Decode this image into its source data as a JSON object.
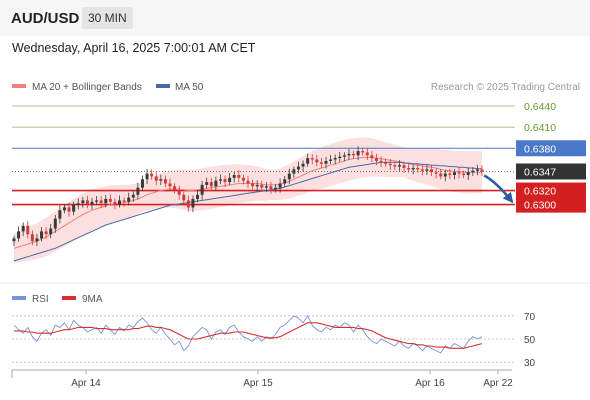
{
  "header": {
    "symbol": "AUD/USD",
    "timeframe": "30 MIN",
    "datetime": "Wednesday, April 16, 2025 7:00:01 AM CET"
  },
  "colors": {
    "up_candle": "#3a3a3a",
    "down_candle": "#d33a3a",
    "ma20": "#f08080",
    "bollinger_fill": "#fbd5d5",
    "ma50": "#4a68a8",
    "resistance_green": "#a8c880",
    "resistance_blue": "#4a78c8",
    "support_red": "#d42020",
    "current_price_box": "#333333",
    "rsi": "#7a93d8",
    "rsi_ma": "#d63030",
    "forecast_arrow": "#2f5aa0"
  },
  "chart_data": [
    {
      "type": "candlestick",
      "legend": [
        {
          "name": "MA 20 + Bollinger Bands",
          "color": "#f08080"
        },
        {
          "name": "MA 50",
          "color": "#4a68a8"
        }
      ],
      "credit": "Research © 2025 Trading Central",
      "x_labels": [
        "Apr 14",
        "Apr 15",
        "Apr 16",
        "Apr 22"
      ],
      "ylim": [
        0.6225,
        0.6455
      ],
      "levels": [
        {
          "value": 0.644,
          "label": "0.6440",
          "kind": "resistance"
        },
        {
          "value": 0.641,
          "label": "0.6410",
          "kind": "resistance"
        },
        {
          "value": 0.638,
          "label": "0.6380",
          "kind": "pivot"
        },
        {
          "value": 0.6347,
          "label": "0.6347",
          "kind": "current"
        },
        {
          "value": 0.632,
          "label": "0.6320",
          "kind": "support"
        },
        {
          "value": 0.63,
          "label": "0.6300",
          "kind": "support"
        }
      ],
      "closes": [
        0.6252,
        0.6262,
        0.627,
        0.6258,
        0.6248,
        0.6252,
        0.6262,
        0.6258,
        0.6266,
        0.628,
        0.6292,
        0.6296,
        0.629,
        0.63,
        0.6302,
        0.6306,
        0.63,
        0.6304,
        0.6306,
        0.6302,
        0.6308,
        0.6304,
        0.63,
        0.6306,
        0.6304,
        0.631,
        0.6314,
        0.6324,
        0.6336,
        0.6344,
        0.634,
        0.6334,
        0.6336,
        0.633,
        0.6326,
        0.632,
        0.6314,
        0.6306,
        0.6296,
        0.6308,
        0.6314,
        0.6328,
        0.6332,
        0.6326,
        0.6334,
        0.6336,
        0.6332,
        0.6338,
        0.6342,
        0.6338,
        0.6334,
        0.633,
        0.6326,
        0.6328,
        0.6324,
        0.6326,
        0.6322,
        0.6324,
        0.633,
        0.6336,
        0.6344,
        0.635,
        0.6354,
        0.6358,
        0.6366,
        0.6364,
        0.636,
        0.6358,
        0.6362,
        0.6364,
        0.6366,
        0.6368,
        0.637,
        0.6372,
        0.637,
        0.6376,
        0.6374,
        0.637,
        0.6366,
        0.6362,
        0.636,
        0.6358,
        0.6356,
        0.6354,
        0.6356,
        0.6352,
        0.635,
        0.6352,
        0.635,
        0.6348,
        0.635,
        0.6346,
        0.6344,
        0.634,
        0.6344,
        0.6342,
        0.6346,
        0.6344,
        0.6342,
        0.6346,
        0.6348,
        0.635,
        0.6347
      ],
      "ma20": [
        0.6238,
        0.624,
        0.6242,
        0.6244,
        0.6246,
        0.6248,
        0.6251,
        0.6254,
        0.6258,
        0.6262,
        0.6266,
        0.627,
        0.6274,
        0.6278,
        0.6282,
        0.6286,
        0.6289,
        0.6292,
        0.6294,
        0.6296,
        0.6298,
        0.63,
        0.6301,
        0.6302,
        0.6303,
        0.6304,
        0.6306,
        0.6308,
        0.6311,
        0.6314,
        0.6316,
        0.6318,
        0.632,
        0.6321,
        0.6322,
        0.6322,
        0.6322,
        0.6321,
        0.632,
        0.632,
        0.6321,
        0.6322,
        0.6323,
        0.6324,
        0.6325,
        0.6326,
        0.6327,
        0.6328,
        0.6329,
        0.633,
        0.633,
        0.633,
        0.633,
        0.633,
        0.6329,
        0.6328,
        0.6328,
        0.6328,
        0.6329,
        0.6331,
        0.6333,
        0.6336,
        0.6339,
        0.6342,
        0.6345,
        0.6348,
        0.635,
        0.6352,
        0.6354,
        0.6356,
        0.6358,
        0.636,
        0.6362,
        0.6364,
        0.6365,
        0.6366,
        0.6367,
        0.6367,
        0.6367,
        0.6366,
        0.6365,
        0.6364,
        0.6363,
        0.6362,
        0.6361,
        0.636,
        0.6358,
        0.6357,
        0.6356,
        0.6355,
        0.6354,
        0.6353,
        0.6352,
        0.635,
        0.6349,
        0.6348,
        0.6347,
        0.6347,
        0.6346,
        0.6346,
        0.6346,
        0.6346,
        0.6346
      ],
      "bollinger_width": 0.003,
      "ma50": [
        0.622,
        0.6222,
        0.6224,
        0.6226,
        0.6228,
        0.623,
        0.6232,
        0.6234,
        0.6236,
        0.6238,
        0.6241,
        0.6244,
        0.6247,
        0.625,
        0.6253,
        0.6256,
        0.6259,
        0.6262,
        0.6265,
        0.6268,
        0.6271,
        0.6273,
        0.6275,
        0.6277,
        0.6279,
        0.6281,
        0.6283,
        0.6285,
        0.6287,
        0.6289,
        0.6291,
        0.6293,
        0.6295,
        0.6297,
        0.6299,
        0.63,
        0.6301,
        0.6302,
        0.6303,
        0.6304,
        0.6305,
        0.6306,
        0.6307,
        0.6308,
        0.6309,
        0.631,
        0.6311,
        0.6312,
        0.6313,
        0.6314,
        0.6315,
        0.6316,
        0.6317,
        0.6318,
        0.6319,
        0.632,
        0.6321,
        0.6322,
        0.6323,
        0.6325,
        0.6327,
        0.6329,
        0.6331,
        0.6333,
        0.6335,
        0.6337,
        0.6339,
        0.6341,
        0.6343,
        0.6345,
        0.6347,
        0.6349,
        0.6351,
        0.6353,
        0.6354,
        0.6355,
        0.6356,
        0.6357,
        0.6358,
        0.6359,
        0.636,
        0.636,
        0.636,
        0.636,
        0.636,
        0.6359,
        0.6359,
        0.6358,
        0.6358,
        0.6357,
        0.6357,
        0.6356,
        0.6356,
        0.6355,
        0.6355,
        0.6354,
        0.6354,
        0.6353,
        0.6353,
        0.6352,
        0.6352,
        0.6351,
        0.6351
      ],
      "forecast_target": 0.63
    },
    {
      "type": "line",
      "legend": [
        {
          "name": "RSI",
          "color": "#7a93d8"
        },
        {
          "name": "9MA",
          "color": "#d63030"
        }
      ],
      "yticks": [
        70,
        50,
        30
      ],
      "ylim": [
        25,
        75
      ],
      "rsi": [
        62,
        58,
        55,
        60,
        52,
        48,
        55,
        58,
        53,
        62,
        60,
        64,
        58,
        66,
        62,
        60,
        56,
        58,
        60,
        55,
        62,
        58,
        54,
        60,
        57,
        62,
        60,
        65,
        68,
        64,
        58,
        55,
        60,
        54,
        50,
        45,
        48,
        40,
        44,
        52,
        56,
        60,
        58,
        50,
        56,
        58,
        54,
        60,
        62,
        56,
        52,
        50,
        48,
        52,
        48,
        52,
        50,
        54,
        60,
        62,
        66,
        70,
        68,
        64,
        70,
        62,
        58,
        56,
        60,
        58,
        62,
        60,
        64,
        62,
        56,
        62,
        58,
        52,
        48,
        46,
        50,
        48,
        46,
        44,
        48,
        44,
        42,
        46,
        44,
        40,
        44,
        42,
        40,
        38,
        44,
        42,
        46,
        44,
        42,
        48,
        52,
        50,
        52
      ],
      "rsi_ma": [
        57,
        57,
        57,
        56,
        56,
        55,
        55,
        55,
        55,
        56,
        57,
        58,
        58,
        59,
        60,
        60,
        60,
        60,
        59,
        59,
        59,
        58,
        58,
        58,
        58,
        58,
        59,
        59,
        60,
        61,
        61,
        60,
        60,
        59,
        58,
        56,
        54,
        52,
        50,
        50,
        50,
        51,
        52,
        53,
        54,
        55,
        55,
        55,
        56,
        56,
        56,
        55,
        54,
        53,
        52,
        51,
        51,
        51,
        52,
        54,
        56,
        58,
        60,
        62,
        64,
        64,
        64,
        63,
        62,
        61,
        60,
        60,
        60,
        60,
        60,
        59,
        59,
        58,
        57,
        55,
        53,
        51,
        50,
        49,
        48,
        47,
        46,
        46,
        45,
        45,
        44,
        44,
        43,
        43,
        43,
        42,
        42,
        42,
        42,
        43,
        44,
        45,
        46
      ]
    }
  ]
}
